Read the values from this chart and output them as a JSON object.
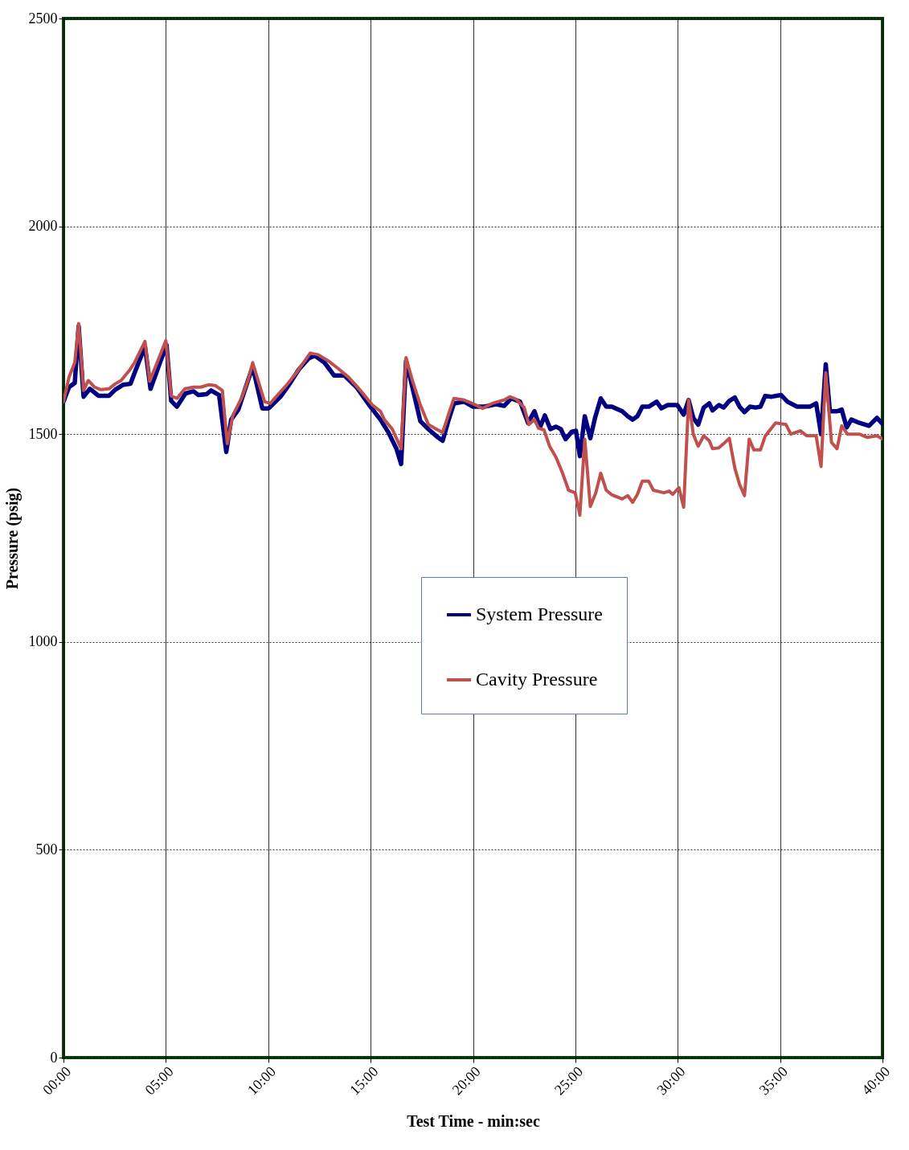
{
  "chart_data": {
    "type": "line",
    "xlabel": "Test Time - min:sec",
    "ylabel": "Pressure (psig)",
    "xlim": [
      0,
      40
    ],
    "ylim": [
      0,
      2500
    ],
    "xticks": [
      {
        "value": 0,
        "label": "00:00"
      },
      {
        "value": 5,
        "label": "05:00"
      },
      {
        "value": 10,
        "label": "10:00"
      },
      {
        "value": 15,
        "label": "15:00"
      },
      {
        "value": 20,
        "label": "20:00"
      },
      {
        "value": 25,
        "label": "25:00"
      },
      {
        "value": 30,
        "label": "30:00"
      },
      {
        "value": 35,
        "label": "35:00"
      },
      {
        "value": 40,
        "label": "40:00"
      }
    ],
    "yticks": [
      0,
      500,
      1000,
      1500,
      2000,
      2500
    ],
    "grid": true,
    "legend": "center",
    "marker": "none",
    "line_style": "solid",
    "series": [
      {
        "name": "System Pressure",
        "color": "#000080",
        "x": [
          0,
          0.27,
          0.55,
          0.74,
          0.98,
          1.29,
          1.72,
          2.22,
          2.53,
          2.92,
          3.27,
          3.51,
          3.98,
          4.25,
          5.03,
          5.26,
          5.54,
          5.96,
          6.35,
          6.59,
          6.98,
          7.21,
          7.6,
          7.95,
          8.19,
          8.54,
          8.93,
          9.24,
          9.71,
          10.02,
          10.6,
          10.99,
          11.5,
          11.97,
          12.28,
          12.75,
          13.22,
          13.72,
          14.31,
          14.93,
          15.48,
          15.87,
          16.26,
          16.49,
          16.73,
          17.04,
          17.43,
          17.82,
          18.29,
          18.52,
          18.79,
          19.07,
          19.57,
          20.0,
          20.55,
          21.13,
          21.52,
          21.87,
          22.3,
          22.69,
          23.0,
          23.27,
          23.51,
          23.78,
          24.05,
          24.29,
          24.52,
          24.83,
          25.03,
          25.22,
          25.46,
          25.73,
          25.96,
          26.24,
          26.51,
          26.78,
          27.29,
          27.56,
          27.8,
          28.03,
          28.27,
          28.58,
          28.97,
          29.2,
          29.51,
          29.98,
          30.29,
          30.53,
          30.76,
          31.0,
          31.27,
          31.54,
          31.7,
          32.01,
          32.24,
          32.52,
          32.79,
          33.02,
          33.26,
          33.53,
          33.8,
          34.04,
          34.27,
          34.58,
          35.05,
          35.36,
          35.83,
          36.45,
          36.76,
          37.0,
          37.23,
          37.43,
          37.78,
          38.01,
          38.25,
          38.48,
          38.87,
          39.34,
          39.73,
          40
        ],
        "values": [
          1578,
          1613,
          1623,
          1760,
          1590,
          1609,
          1592,
          1592,
          1607,
          1619,
          1621,
          1652,
          1711,
          1609,
          1715,
          1580,
          1566,
          1598,
          1603,
          1594,
          1596,
          1605,
          1594,
          1457,
          1535,
          1559,
          1617,
          1662,
          1562,
          1562,
          1590,
          1617,
          1656,
          1682,
          1689,
          1672,
          1641,
          1641,
          1613,
          1570,
          1535,
          1504,
          1465,
          1428,
          1676,
          1613,
          1531,
          1512,
          1492,
          1484,
          1531,
          1574,
          1578,
          1566,
          1566,
          1572,
          1568,
          1586,
          1578,
          1527,
          1555,
          1516,
          1545,
          1512,
          1518,
          1512,
          1488,
          1506,
          1508,
          1447,
          1543,
          1490,
          1539,
          1586,
          1566,
          1566,
          1555,
          1543,
          1535,
          1543,
          1566,
          1566,
          1578,
          1562,
          1570,
          1570,
          1547,
          1582,
          1539,
          1523,
          1564,
          1574,
          1557,
          1570,
          1564,
          1580,
          1588,
          1566,
          1553,
          1566,
          1564,
          1566,
          1592,
          1590,
          1594,
          1578,
          1566,
          1566,
          1574,
          1500,
          1668,
          1555,
          1555,
          1559,
          1516,
          1535,
          1527,
          1520,
          1539,
          1525
        ]
      },
      {
        "name": "Cavity Pressure",
        "color": "#c0504d",
        "x": [
          0,
          0.27,
          0.55,
          0.74,
          0.98,
          1.21,
          1.52,
          1.83,
          2.22,
          2.53,
          2.81,
          3.2,
          3.47,
          3.98,
          4.21,
          5.0,
          5.26,
          5.54,
          5.93,
          6.35,
          6.71,
          7.1,
          7.41,
          7.76,
          8.0,
          8.27,
          8.69,
          9.01,
          9.24,
          9.82,
          10.1,
          10.53,
          10.88,
          11.38,
          12.05,
          12.44,
          12.94,
          13.41,
          13.92,
          14.5,
          15.09,
          15.48,
          15.67,
          16.06,
          16.49,
          16.73,
          17.04,
          17.43,
          17.82,
          18.21,
          18.52,
          18.83,
          19.07,
          19.57,
          19.96,
          20.47,
          20.94,
          21.52,
          21.8,
          22.11,
          22.5,
          22.73,
          23.0,
          23.2,
          23.47,
          23.74,
          24.05,
          24.36,
          24.67,
          24.99,
          25.22,
          25.46,
          25.73,
          26.0,
          26.24,
          26.51,
          26.78,
          27.29,
          27.56,
          27.8,
          28.03,
          28.27,
          28.58,
          28.81,
          29.32,
          29.59,
          29.75,
          30.06,
          30.29,
          30.53,
          30.76,
          31.0,
          31.27,
          31.54,
          31.7,
          32.01,
          32.24,
          32.52,
          32.79,
          33.02,
          33.26,
          33.49,
          33.72,
          34.04,
          34.27,
          34.78,
          35.29,
          35.52,
          35.99,
          36.3,
          36.76,
          37.0,
          37.23,
          37.51,
          37.78,
          38.01,
          38.29,
          38.87,
          39.26,
          39.73,
          40
        ],
        "values": [
          1578,
          1637,
          1672,
          1766,
          1605,
          1629,
          1613,
          1607,
          1609,
          1621,
          1629,
          1652,
          1672,
          1723,
          1627,
          1725,
          1592,
          1586,
          1609,
          1613,
          1613,
          1619,
          1617,
          1605,
          1477,
          1545,
          1586,
          1629,
          1672,
          1578,
          1574,
          1598,
          1617,
          1648,
          1695,
          1691,
          1676,
          1658,
          1637,
          1605,
          1570,
          1555,
          1535,
          1512,
          1465,
          1684,
          1629,
          1570,
          1523,
          1512,
          1504,
          1551,
          1586,
          1582,
          1574,
          1562,
          1574,
          1582,
          1590,
          1584,
          1564,
          1523,
          1535,
          1514,
          1510,
          1471,
          1445,
          1408,
          1365,
          1359,
          1305,
          1488,
          1326,
          1359,
          1406,
          1365,
          1354,
          1344,
          1352,
          1336,
          1355,
          1387,
          1387,
          1365,
          1359,
          1363,
          1355,
          1371,
          1324,
          1582,
          1500,
          1471,
          1496,
          1484,
          1465,
          1467,
          1477,
          1490,
          1418,
          1379,
          1352,
          1488,
          1462,
          1462,
          1495,
          1527,
          1523,
          1500,
          1508,
          1496,
          1496,
          1422,
          1648,
          1480,
          1465,
          1520,
          1500,
          1500,
          1492,
          1496,
          1488
        ]
      }
    ]
  }
}
